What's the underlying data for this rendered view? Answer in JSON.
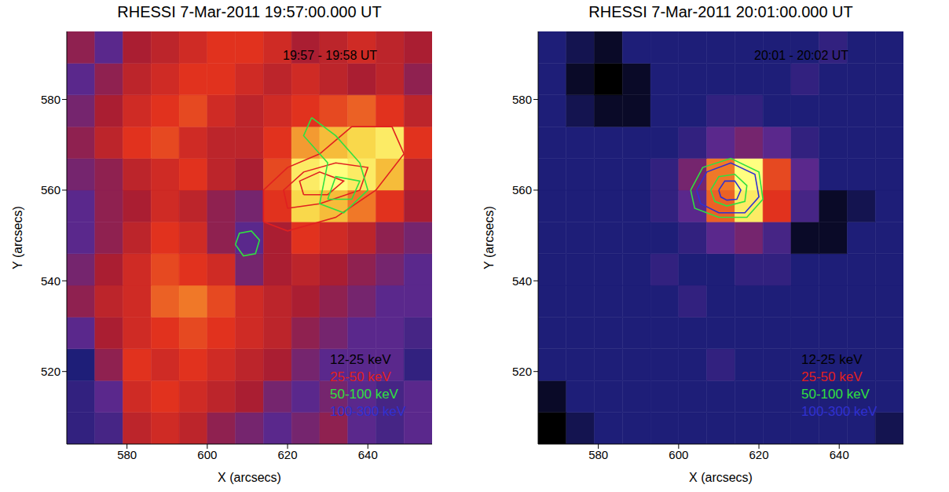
{
  "chart_data": [
    {
      "type": "heatmap",
      "title": "RHESSI  7-Mar-2011 19:57:00.000 UT",
      "annotation": "19:57 - 19:58 UT",
      "x_label": "X (arcsecs)",
      "y_label": "Y (arcsecs)",
      "xlim": [
        565,
        656
      ],
      "ylim": [
        504,
        595
      ],
      "xticks": [
        580,
        600,
        620,
        640
      ],
      "yticks": [
        520,
        540,
        560,
        580
      ],
      "cell_x_edges": [
        565,
        572,
        579,
        586,
        593,
        600,
        607,
        614,
        621,
        628,
        635,
        642,
        649,
        656
      ],
      "cell_y_edges": [
        504,
        511,
        518,
        525,
        532,
        539,
        546,
        553,
        560,
        567,
        574,
        581,
        588,
        595
      ],
      "color_range": [
        0,
        1
      ],
      "cells": [
        [
          0.2,
          0.25,
          0.5,
          0.55,
          0.5,
          0.4,
          0.35,
          0.3,
          0.35,
          0.4,
          0.3,
          0.25,
          0.3
        ],
        [
          0.2,
          0.3,
          0.55,
          0.6,
          0.55,
          0.5,
          0.45,
          0.35,
          0.3,
          0.35,
          0.3,
          0.25,
          0.3
        ],
        [
          0.15,
          0.4,
          0.6,
          0.55,
          0.6,
          0.55,
          0.5,
          0.45,
          0.35,
          0.3,
          0.3,
          0.3,
          0.2
        ],
        [
          0.3,
          0.45,
          0.55,
          0.6,
          0.65,
          0.6,
          0.55,
          0.5,
          0.4,
          0.35,
          0.3,
          0.3,
          0.25
        ],
        [
          0.4,
          0.5,
          0.55,
          0.7,
          0.75,
          0.65,
          0.55,
          0.5,
          0.45,
          0.4,
          0.35,
          0.3,
          0.3
        ],
        [
          0.35,
          0.45,
          0.55,
          0.65,
          0.6,
          0.55,
          0.35,
          0.45,
          0.5,
          0.45,
          0.4,
          0.35,
          0.3
        ],
        [
          0.3,
          0.4,
          0.5,
          0.6,
          0.55,
          0.4,
          0.3,
          0.45,
          0.6,
          0.55,
          0.5,
          0.4,
          0.35
        ],
        [
          0.3,
          0.4,
          0.45,
          0.55,
          0.5,
          0.4,
          0.35,
          0.6,
          0.9,
          0.85,
          0.75,
          0.6,
          0.45
        ],
        [
          0.35,
          0.4,
          0.5,
          0.55,
          0.6,
          0.5,
          0.45,
          0.65,
          0.95,
          1.0,
          0.95,
          0.85,
          0.5
        ],
        [
          0.4,
          0.5,
          0.6,
          0.65,
          0.55,
          0.5,
          0.5,
          0.6,
          0.8,
          0.85,
          0.9,
          0.95,
          0.6
        ],
        [
          0.35,
          0.45,
          0.55,
          0.6,
          0.65,
          0.55,
          0.5,
          0.55,
          0.6,
          0.65,
          0.7,
          0.6,
          0.5
        ],
        [
          0.3,
          0.4,
          0.5,
          0.55,
          0.6,
          0.6,
          0.55,
          0.5,
          0.55,
          0.5,
          0.45,
          0.5,
          0.4
        ],
        [
          0.4,
          0.3,
          0.45,
          0.5,
          0.55,
          0.6,
          0.6,
          0.55,
          0.45,
          0.5,
          0.55,
          0.5,
          0.45
        ]
      ],
      "legend": "lower right",
      "bands": [
        {
          "name": "12-25 keV",
          "color": "#000000"
        },
        {
          "name": "25-50 keV",
          "color": "#e02020"
        },
        {
          "name": "50-100 keV",
          "color": "#30e040"
        },
        {
          "name": "100-300 keV",
          "color": "#3030d0"
        }
      ],
      "contours": [
        {
          "band": "25-50 keV",
          "points": [
            [
              614,
              553
            ],
            [
              620,
              551
            ],
            [
              632,
              554
            ],
            [
              642,
              560
            ],
            [
              649,
              568
            ],
            [
              646,
              574
            ],
            [
              636,
              574
            ],
            [
              628,
              568
            ],
            [
              620,
              565
            ],
            [
              614,
              560
            ],
            [
              614,
              553
            ]
          ]
        },
        {
          "band": "25-50 keV",
          "points": [
            [
              620,
              556
            ],
            [
              628,
              557
            ],
            [
              638,
              560
            ],
            [
              640,
              565
            ],
            [
              632,
              566
            ],
            [
              624,
              564
            ],
            [
              619,
              560
            ],
            [
              620,
              556
            ]
          ]
        },
        {
          "band": "25-50 keV",
          "points": [
            [
              624,
              559
            ],
            [
              630,
              559
            ],
            [
              634,
              562
            ],
            [
              628,
              564
            ],
            [
              623,
              562
            ],
            [
              624,
              559
            ]
          ]
        },
        {
          "band": "50-100 keV",
          "points": [
            [
              626,
              576
            ],
            [
              632,
              572
            ],
            [
              638,
              566
            ],
            [
              640,
              560
            ],
            [
              634,
              555
            ],
            [
              628,
              557
            ],
            [
              630,
              566
            ],
            [
              624,
              572
            ],
            [
              626,
              576
            ]
          ]
        },
        {
          "band": "50-100 keV",
          "points": [
            [
              630,
              558
            ],
            [
              636,
              558
            ],
            [
              638,
              562
            ],
            [
              632,
              563
            ],
            [
              630,
              558
            ]
          ]
        },
        {
          "band": "50-100 keV",
          "points": [
            [
              607,
              548
            ],
            [
              608,
              550.5
            ],
            [
              611,
              551
            ],
            [
              613,
              549
            ],
            [
              612,
              546
            ],
            [
              609,
              545.5
            ],
            [
              607,
              548
            ]
          ]
        }
      ]
    },
    {
      "type": "heatmap",
      "title": "RHESSI  7-Mar-2011 20:01:00.000 UT",
      "annotation": "20:01 - 20:02 UT",
      "x_label": "X (arcsecs)",
      "y_label": "Y (arcsecs)",
      "xlim": [
        565,
        656
      ],
      "ylim": [
        504,
        595
      ],
      "xticks": [
        580,
        600,
        620,
        640
      ],
      "yticks": [
        520,
        540,
        560,
        580
      ],
      "cell_x_edges": [
        565,
        572,
        579,
        586,
        593,
        600,
        607,
        614,
        621,
        628,
        635,
        642,
        649,
        656
      ],
      "cell_y_edges": [
        504,
        511,
        518,
        525,
        532,
        539,
        546,
        553,
        560,
        567,
        574,
        581,
        588,
        595
      ],
      "color_range": [
        0,
        1
      ],
      "cells": [
        [
          0.0,
          0.1,
          0.15,
          0.15,
          0.15,
          0.15,
          0.15,
          0.15,
          0.15,
          0.15,
          0.15,
          0.15,
          0.1
        ],
        [
          0.05,
          0.15,
          0.15,
          0.15,
          0.15,
          0.15,
          0.15,
          0.15,
          0.15,
          0.15,
          0.15,
          0.15,
          0.15
        ],
        [
          0.15,
          0.15,
          0.15,
          0.15,
          0.15,
          0.15,
          0.2,
          0.15,
          0.15,
          0.15,
          0.15,
          0.15,
          0.15
        ],
        [
          0.15,
          0.15,
          0.15,
          0.15,
          0.15,
          0.15,
          0.15,
          0.15,
          0.15,
          0.15,
          0.15,
          0.15,
          0.15
        ],
        [
          0.15,
          0.15,
          0.15,
          0.15,
          0.15,
          0.2,
          0.15,
          0.15,
          0.15,
          0.15,
          0.15,
          0.15,
          0.15
        ],
        [
          0.15,
          0.15,
          0.15,
          0.15,
          0.2,
          0.15,
          0.15,
          0.2,
          0.2,
          0.15,
          0.15,
          0.15,
          0.15
        ],
        [
          0.15,
          0.15,
          0.15,
          0.15,
          0.15,
          0.2,
          0.3,
          0.35,
          0.25,
          0.05,
          0.05,
          0.15,
          0.15
        ],
        [
          0.15,
          0.15,
          0.15,
          0.15,
          0.2,
          0.3,
          0.7,
          0.95,
          0.6,
          0.25,
          0.05,
          0.1,
          0.15
        ],
        [
          0.15,
          0.15,
          0.15,
          0.15,
          0.2,
          0.35,
          0.75,
          1.0,
          0.65,
          0.3,
          0.15,
          0.15,
          0.15
        ],
        [
          0.15,
          0.15,
          0.15,
          0.15,
          0.15,
          0.2,
          0.3,
          0.35,
          0.3,
          0.2,
          0.15,
          0.15,
          0.15
        ],
        [
          0.15,
          0.1,
          0.05,
          0.05,
          0.15,
          0.15,
          0.2,
          0.2,
          0.15,
          0.15,
          0.15,
          0.15,
          0.15
        ],
        [
          0.15,
          0.05,
          0.0,
          0.05,
          0.15,
          0.15,
          0.15,
          0.15,
          0.15,
          0.2,
          0.15,
          0.15,
          0.15
        ],
        [
          0.15,
          0.1,
          0.05,
          0.15,
          0.15,
          0.15,
          0.15,
          0.15,
          0.15,
          0.15,
          0.2,
          0.15,
          0.15
        ]
      ],
      "legend": "lower right",
      "bands": [
        {
          "name": "12-25 keV",
          "color": "#000000"
        },
        {
          "name": "25-50 keV",
          "color": "#e02020"
        },
        {
          "name": "50-100 keV",
          "color": "#30e040"
        },
        {
          "name": "100-300 keV",
          "color": "#3030d0"
        }
      ],
      "contours": [
        {
          "band": "50-100 keV",
          "points": [
            [
              603,
              560
            ],
            [
              606,
              565
            ],
            [
              613,
              567
            ],
            [
              620,
              564
            ],
            [
              621,
              558
            ],
            [
              617,
              554
            ],
            [
              610,
              554
            ],
            [
              604,
              556
            ],
            [
              603,
              560
            ]
          ]
        },
        {
          "band": "100-300 keV",
          "points": [
            [
              604.5,
              560
            ],
            [
              607,
              564
            ],
            [
              613,
              566
            ],
            [
              619,
              563.5
            ],
            [
              620,
              558.5
            ],
            [
              616.5,
              555
            ],
            [
              610,
              555
            ],
            [
              605.5,
              557
            ],
            [
              604.5,
              560
            ]
          ]
        },
        {
          "band": "50-100 keV",
          "points": [
            [
              608,
              560
            ],
            [
              610,
              563
            ],
            [
              614,
              563.5
            ],
            [
              617,
              561
            ],
            [
              616.5,
              557.5
            ],
            [
              612,
              556.5
            ],
            [
              609,
              557.5
            ],
            [
              608,
              560
            ]
          ]
        },
        {
          "band": "100-300 keV",
          "points": [
            [
              610,
              560
            ],
            [
              611.5,
              562
            ],
            [
              614,
              562
            ],
            [
              615.5,
              560
            ],
            [
              614.5,
              558
            ],
            [
              612,
              557.8
            ],
            [
              610.5,
              558.5
            ],
            [
              610,
              560
            ]
          ]
        }
      ]
    }
  ]
}
